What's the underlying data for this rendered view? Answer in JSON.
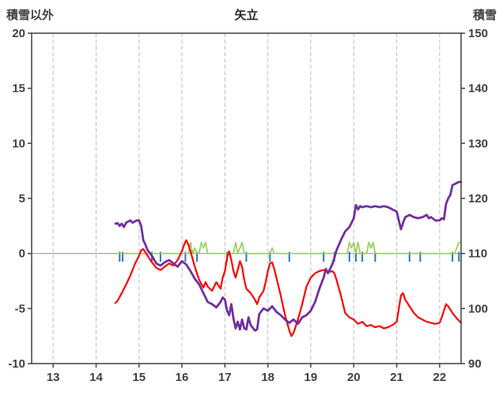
{
  "labels": {
    "title": "矢立",
    "left_axis_title": "積雪以外",
    "right_axis_title": "積雪"
  },
  "chart_data": {
    "type": "line",
    "title": "矢立",
    "grid": "vertical-dashed",
    "legend": "none",
    "x_axis": {
      "min": 12.5,
      "max": 22.5,
      "ticks": [
        13,
        14,
        15,
        16,
        17,
        18,
        19,
        20,
        21,
        22
      ]
    },
    "left_axis": {
      "title": "積雪以外",
      "min": -10,
      "max": 20,
      "ticks": [
        20,
        15,
        10,
        5,
        0,
        -5,
        -10
      ]
    },
    "right_axis": {
      "title": "積雪",
      "min": 90,
      "max": 150,
      "ticks": [
        150,
        140,
        130,
        120,
        110,
        100,
        90
      ]
    },
    "series": [
      {
        "name": "green-line",
        "color": "#92D050",
        "width": 1.6,
        "axis": "left",
        "points": [
          [
            14.45,
            0
          ],
          [
            16.15,
            0
          ],
          [
            16.2,
            1.0
          ],
          [
            16.25,
            0
          ],
          [
            16.3,
            0.5
          ],
          [
            16.35,
            0
          ],
          [
            16.4,
            0
          ],
          [
            16.45,
            1.0
          ],
          [
            16.5,
            0.5
          ],
          [
            16.55,
            1.0
          ],
          [
            16.6,
            0
          ],
          [
            17.2,
            0
          ],
          [
            17.25,
            1.0
          ],
          [
            17.3,
            0
          ],
          [
            17.35,
            0.5
          ],
          [
            17.4,
            1.0
          ],
          [
            17.45,
            0
          ],
          [
            18.05,
            0
          ],
          [
            18.1,
            0.5
          ],
          [
            18.15,
            0
          ],
          [
            19.85,
            0
          ],
          [
            19.9,
            1.0
          ],
          [
            19.95,
            0.5
          ],
          [
            20.0,
            1.0
          ],
          [
            20.05,
            0
          ],
          [
            20.1,
            1.0
          ],
          [
            20.15,
            0
          ],
          [
            20.3,
            0
          ],
          [
            20.35,
            1.0
          ],
          [
            20.4,
            0.5
          ],
          [
            20.45,
            1.0
          ],
          [
            20.5,
            0
          ],
          [
            22.35,
            0
          ],
          [
            22.4,
            0.5
          ],
          [
            22.45,
            1.0
          ],
          [
            22.5,
            1.0
          ]
        ]
      },
      {
        "name": "red-line",
        "color": "#FF0000",
        "width": 2.2,
        "axis": "left",
        "points": [
          [
            14.45,
            -4.5
          ],
          [
            14.5,
            -4.3
          ],
          [
            14.6,
            -3.6
          ],
          [
            14.7,
            -2.8
          ],
          [
            14.8,
            -2.0
          ],
          [
            14.9,
            -1.0
          ],
          [
            15.0,
            -0.2
          ],
          [
            15.05,
            0.3
          ],
          [
            15.1,
            0.4
          ],
          [
            15.2,
            -0.2
          ],
          [
            15.3,
            -0.8
          ],
          [
            15.4,
            -1.3
          ],
          [
            15.5,
            -1.5
          ],
          [
            15.6,
            -1.2
          ],
          [
            15.7,
            -0.9
          ],
          [
            15.8,
            -1.1
          ],
          [
            15.9,
            -0.6
          ],
          [
            16.0,
            0.2
          ],
          [
            16.05,
            0.8
          ],
          [
            16.1,
            1.2
          ],
          [
            16.15,
            0.8
          ],
          [
            16.2,
            0.2
          ],
          [
            16.3,
            -1.2
          ],
          [
            16.4,
            -2.4
          ],
          [
            16.5,
            -3.1
          ],
          [
            16.55,
            -2.6
          ],
          [
            16.6,
            -3.0
          ],
          [
            16.7,
            -3.4
          ],
          [
            16.8,
            -2.6
          ],
          [
            16.9,
            -3.2
          ],
          [
            16.95,
            -2.2
          ],
          [
            17.0,
            -1.6
          ],
          [
            17.05,
            -0.4
          ],
          [
            17.1,
            0.2
          ],
          [
            17.15,
            -0.6
          ],
          [
            17.2,
            -1.6
          ],
          [
            17.25,
            -2.2
          ],
          [
            17.3,
            -1.5
          ],
          [
            17.35,
            -0.7
          ],
          [
            17.4,
            -1.2
          ],
          [
            17.45,
            -2.4
          ],
          [
            17.5,
            -3.2
          ],
          [
            17.6,
            -3.6
          ],
          [
            17.7,
            -4.2
          ],
          [
            17.75,
            -4.6
          ],
          [
            17.8,
            -4.0
          ],
          [
            17.9,
            -3.4
          ],
          [
            17.95,
            -2.6
          ],
          [
            18.0,
            -1.6
          ],
          [
            18.05,
            -0.9
          ],
          [
            18.1,
            -0.8
          ],
          [
            18.15,
            -1.4
          ],
          [
            18.2,
            -2.2
          ],
          [
            18.3,
            -3.8
          ],
          [
            18.4,
            -5.6
          ],
          [
            18.5,
            -7.0
          ],
          [
            18.55,
            -7.5
          ],
          [
            18.6,
            -7.2
          ],
          [
            18.7,
            -6.0
          ],
          [
            18.8,
            -4.6
          ],
          [
            18.9,
            -3.0
          ],
          [
            19.0,
            -2.2
          ],
          [
            19.1,
            -1.8
          ],
          [
            19.2,
            -1.6
          ],
          [
            19.3,
            -1.5
          ],
          [
            19.4,
            -1.7
          ],
          [
            19.5,
            -1.6
          ],
          [
            19.55,
            -1.8
          ],
          [
            19.6,
            -2.4
          ],
          [
            19.7,
            -3.8
          ],
          [
            19.8,
            -5.4
          ],
          [
            19.9,
            -5.8
          ],
          [
            20.0,
            -6.0
          ],
          [
            20.1,
            -6.4
          ],
          [
            20.2,
            -6.2
          ],
          [
            20.3,
            -6.6
          ],
          [
            20.4,
            -6.5
          ],
          [
            20.5,
            -6.7
          ],
          [
            20.6,
            -6.6
          ],
          [
            20.7,
            -6.8
          ],
          [
            20.8,
            -6.7
          ],
          [
            20.9,
            -6.5
          ],
          [
            21.0,
            -6.2
          ],
          [
            21.05,
            -5.0
          ],
          [
            21.1,
            -3.8
          ],
          [
            21.15,
            -3.6
          ],
          [
            21.2,
            -4.2
          ],
          [
            21.3,
            -4.8
          ],
          [
            21.4,
            -5.4
          ],
          [
            21.5,
            -5.8
          ],
          [
            21.6,
            -6.0
          ],
          [
            21.7,
            -6.2
          ],
          [
            21.8,
            -6.3
          ],
          [
            21.9,
            -6.4
          ],
          [
            22.0,
            -6.3
          ],
          [
            22.05,
            -5.8
          ],
          [
            22.1,
            -5.2
          ],
          [
            22.15,
            -4.6
          ],
          [
            22.2,
            -4.8
          ],
          [
            22.3,
            -5.4
          ],
          [
            22.4,
            -5.9
          ],
          [
            22.5,
            -6.3
          ]
        ]
      },
      {
        "name": "purple-line",
        "color": "#7030A0",
        "width": 2.8,
        "axis": "right",
        "points": [
          [
            14.45,
            115.4
          ],
          [
            14.5,
            115.5
          ],
          [
            14.55,
            115.0
          ],
          [
            14.6,
            115.4
          ],
          [
            14.65,
            114.8
          ],
          [
            14.7,
            115.6
          ],
          [
            14.75,
            115.8
          ],
          [
            14.8,
            116.0
          ],
          [
            14.85,
            115.6
          ],
          [
            14.9,
            115.8
          ],
          [
            14.95,
            116.0
          ],
          [
            15.0,
            116.0
          ],
          [
            15.05,
            115.0
          ],
          [
            15.1,
            112.4
          ],
          [
            15.15,
            111.6
          ],
          [
            15.2,
            110.6
          ],
          [
            15.3,
            109.6
          ],
          [
            15.4,
            108.2
          ],
          [
            15.5,
            107.8
          ],
          [
            15.6,
            108.4
          ],
          [
            15.7,
            108.8
          ],
          [
            15.8,
            108.2
          ],
          [
            15.9,
            107.6
          ],
          [
            16.0,
            108.6
          ],
          [
            16.1,
            108.0
          ],
          [
            16.2,
            106.8
          ],
          [
            16.3,
            105.4
          ],
          [
            16.4,
            104.4
          ],
          [
            16.5,
            102.8
          ],
          [
            16.6,
            101.2
          ],
          [
            16.7,
            100.8
          ],
          [
            16.8,
            100.2
          ],
          [
            16.9,
            101.2
          ],
          [
            16.95,
            102.0
          ],
          [
            17.0,
            101.6
          ],
          [
            17.05,
            99.6
          ],
          [
            17.1,
            98.8
          ],
          [
            17.15,
            100.8
          ],
          [
            17.2,
            98.2
          ],
          [
            17.25,
            96.4
          ],
          [
            17.3,
            97.6
          ],
          [
            17.35,
            96.2
          ],
          [
            17.4,
            98.0
          ],
          [
            17.45,
            96.4
          ],
          [
            17.5,
            96.2
          ],
          [
            17.55,
            98.4
          ],
          [
            17.6,
            97.0
          ],
          [
            17.7,
            96.0
          ],
          [
            17.75,
            96.2
          ],
          [
            17.8,
            99.0
          ],
          [
            17.9,
            100.0
          ],
          [
            18.0,
            99.6
          ],
          [
            18.1,
            100.4
          ],
          [
            18.2,
            99.4
          ],
          [
            18.3,
            98.8
          ],
          [
            18.4,
            98.0
          ],
          [
            18.5,
            97.4
          ],
          [
            18.6,
            98.0
          ],
          [
            18.7,
            97.2
          ],
          [
            18.8,
            98.4
          ],
          [
            18.9,
            98.8
          ],
          [
            19.0,
            99.6
          ],
          [
            19.1,
            101.2
          ],
          [
            19.2,
            103.6
          ],
          [
            19.3,
            105.6
          ],
          [
            19.35,
            107.2
          ],
          [
            19.4,
            106.4
          ],
          [
            19.5,
            108.0
          ],
          [
            19.55,
            109.2
          ],
          [
            19.6,
            110.6
          ],
          [
            19.7,
            112.4
          ],
          [
            19.8,
            114.0
          ],
          [
            19.9,
            114.8
          ],
          [
            20.0,
            116.4
          ],
          [
            20.05,
            118.8
          ],
          [
            20.1,
            118.0
          ],
          [
            20.15,
            118.6
          ],
          [
            20.2,
            118.4
          ],
          [
            20.3,
            118.6
          ],
          [
            20.4,
            118.4
          ],
          [
            20.5,
            118.6
          ],
          [
            20.6,
            118.4
          ],
          [
            20.7,
            118.6
          ],
          [
            20.8,
            118.4
          ],
          [
            20.9,
            118.0
          ],
          [
            21.0,
            117.6
          ],
          [
            21.05,
            116.0
          ],
          [
            21.1,
            114.4
          ],
          [
            21.15,
            115.6
          ],
          [
            21.2,
            116.6
          ],
          [
            21.3,
            117.0
          ],
          [
            21.4,
            116.6
          ],
          [
            21.5,
            116.4
          ],
          [
            21.6,
            116.6
          ],
          [
            21.7,
            117.0
          ],
          [
            21.75,
            116.4
          ],
          [
            21.8,
            116.6
          ],
          [
            21.9,
            116.0
          ],
          [
            22.0,
            116.0
          ],
          [
            22.05,
            116.4
          ],
          [
            22.1,
            116.2
          ],
          [
            22.15,
            119.0
          ],
          [
            22.2,
            120.0
          ],
          [
            22.25,
            120.6
          ],
          [
            22.3,
            122.4
          ],
          [
            22.35,
            122.6
          ],
          [
            22.4,
            122.8
          ],
          [
            22.45,
            123.0
          ],
          [
            22.5,
            123.0
          ]
        ]
      }
    ],
    "bars": {
      "name": "blue-ticks",
      "color": "#2E75B6",
      "axis": "left",
      "y_top": 0.15,
      "y_bottom": -0.75,
      "x": [
        14.55,
        14.62,
        15.3,
        15.5,
        16.08,
        16.35,
        17.05,
        17.5,
        18.05,
        18.5,
        19.3,
        19.55,
        19.9,
        20.05,
        20.2,
        20.5,
        21.3,
        21.55,
        22.3,
        22.45
      ]
    },
    "style": {
      "gridline_color": "#BFBFBF",
      "zero_line_color": "#9A9A9A",
      "border_color": "#404040",
      "tick_label_color": "#404040"
    }
  }
}
